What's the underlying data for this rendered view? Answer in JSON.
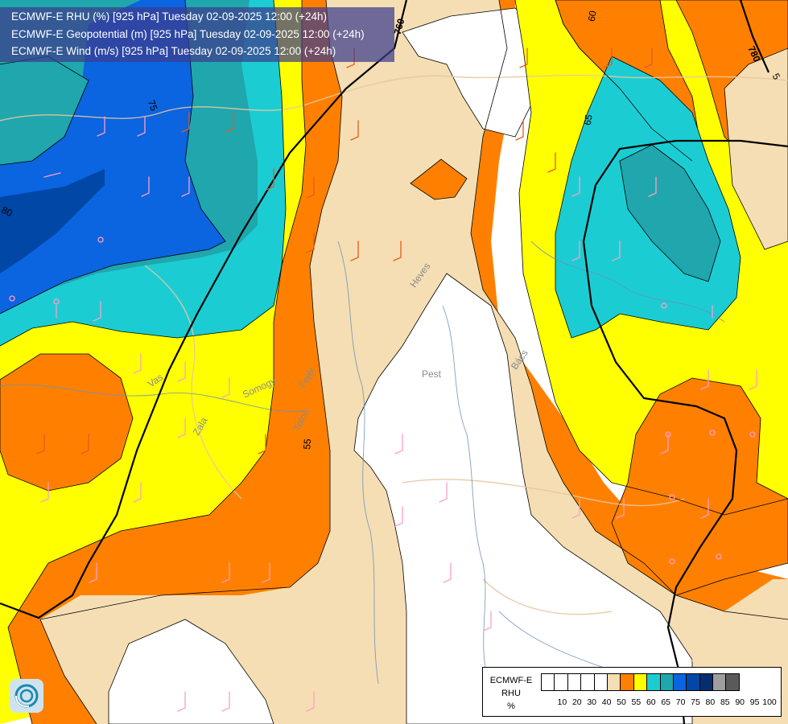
{
  "title": {
    "line1": "ECMWF-E RHU (%) [925 hPa] Tuesday 02-09-2025 12:00 (+24h)",
    "line2": "ECMWF-E Geopotential (m) [925 hPa] Tuesday 02-09-2025 12:00 (+24h)",
    "line3": "ECMWF-E Wind (m/s) [925 hPa] Tuesday 02-09-2025 12:00 (+24h)"
  },
  "legend": {
    "line1": "ECMWF-E",
    "line2": "RHU",
    "unit": "%",
    "colors": [
      "#ffffff",
      "#ffffff",
      "#ffffff",
      "#ffffff",
      "#ffffff",
      "#f5deb3",
      "#ff8000",
      "#ffff00",
      "#1bcdd3",
      "#20a6ad",
      "#0b64e0",
      "#0047a6",
      "#062d6e",
      "#9e9e9e",
      "#5a5a5a"
    ],
    "ticks": [
      "10",
      "20",
      "30",
      "40",
      "50",
      "55",
      "60",
      "65",
      "70",
      "75",
      "80",
      "85",
      "90",
      "95",
      "100"
    ]
  },
  "place_labels": [
    "Pest",
    "Heves",
    "Vas",
    "Zala",
    "Somogy",
    "Tolna",
    "Fejér",
    "Bács"
  ],
  "contour_labels": {
    "geopotential": [
      "760",
      "780"
    ],
    "rhu": [
      "75",
      "80",
      "60",
      "65",
      "55",
      "5"
    ]
  },
  "logo_icon": "ecmwf-swirl-icon"
}
